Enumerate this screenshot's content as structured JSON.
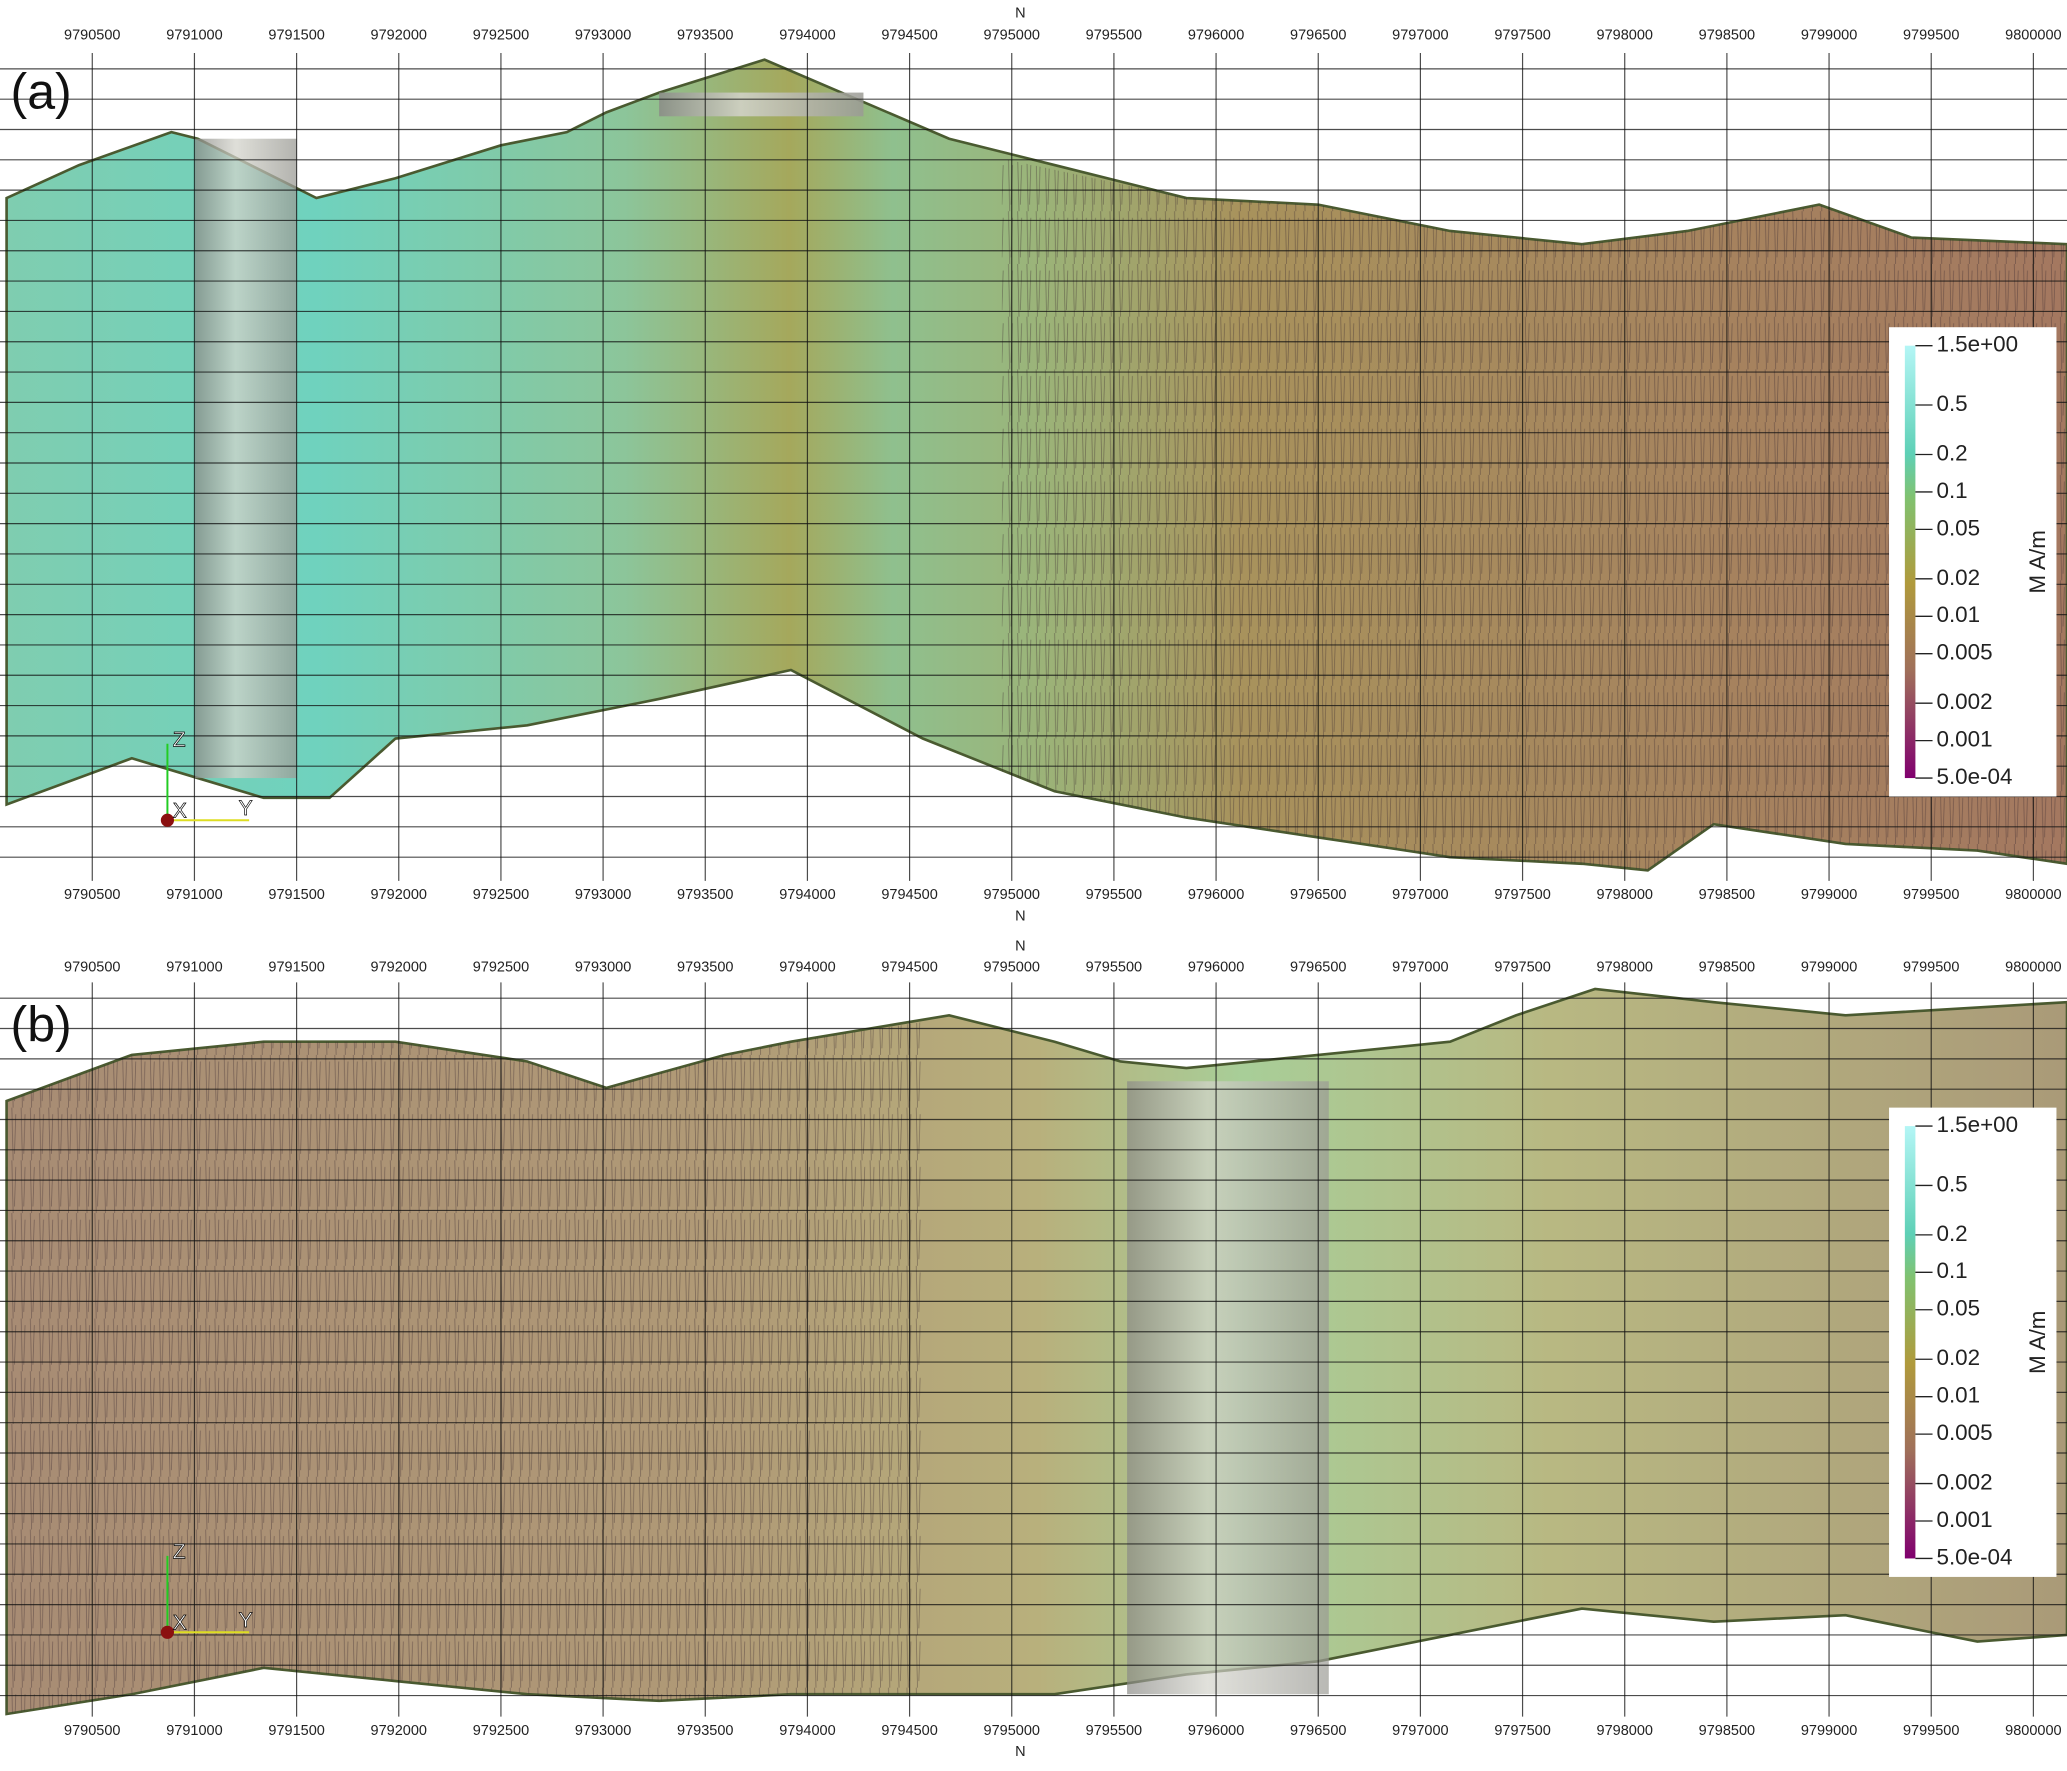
{
  "panels": [
    {
      "label": "(a)",
      "axis_title_top": "N",
      "axis_title_bottom": "N",
      "ticks": [
        "9790500",
        "9791000",
        "9791500",
        "9792000",
        "9792500",
        "9793000",
        "9793500",
        "9794000",
        "9794500",
        "9795000",
        "9795500",
        "9796000",
        "9796500",
        "9797000",
        "9797500",
        "9798000",
        "9798500",
        "9799000",
        "9799500",
        "9800000"
      ],
      "colorbar": {
        "title": "M A/m",
        "ticks": [
          {
            "value": 1.5,
            "label": "1.5e+00"
          },
          0.5,
          0.2,
          0.1,
          0.05,
          0.02,
          0.01,
          0.005,
          0.002,
          0.001,
          {
            "value": 0.0005,
            "label": "5.0e-04"
          }
        ]
      },
      "triad": {
        "z": "Z",
        "x": "X",
        "y": "Y"
      }
    },
    {
      "label": "(b)",
      "axis_title_top": "N",
      "axis_title_bottom": "N",
      "ticks": [
        "9790500",
        "9791000",
        "9791500",
        "9792000",
        "9792500",
        "9793000",
        "9793500",
        "9794000",
        "9794500",
        "9795000",
        "9795500",
        "9796000",
        "9796500",
        "9797000",
        "9797500",
        "9798000",
        "9798500",
        "9799000",
        "9799500",
        "9800000"
      ],
      "colorbar": {
        "title": "M A/m",
        "ticks": [
          {
            "value": 1.5,
            "label": "1.5e+00"
          },
          0.5,
          0.2,
          0.1,
          0.05,
          0.02,
          0.01,
          0.005,
          0.002,
          0.001,
          {
            "value": 0.0005,
            "label": "5.0e-04"
          }
        ]
      },
      "triad": {
        "z": "Z",
        "x": "X",
        "y": "Y"
      }
    }
  ]
}
